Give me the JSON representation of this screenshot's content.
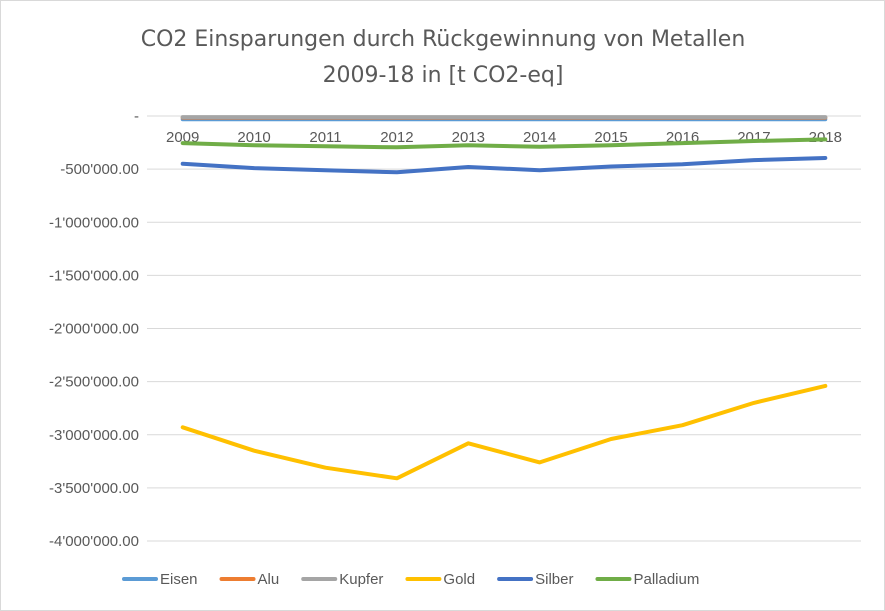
{
  "chart_data": {
    "type": "line",
    "title_lines": [
      "CO2 Einsparungen durch Rückgewinnung von Metallen",
      "2009-18 in [t CO2-eq]"
    ],
    "categories": [
      "2009",
      "2010",
      "2011",
      "2012",
      "2013",
      "2014",
      "2015",
      "2016",
      "2017",
      "2018"
    ],
    "y_ticks": [
      0,
      -500000,
      -1000000,
      -1500000,
      -2000000,
      -2500000,
      -3000000,
      -3500000,
      -4000000
    ],
    "y_tick_labels": [
      "-",
      "-500'000.00",
      "-1'000'000.00",
      "-1'500'000.00",
      "-2'000'000.00",
      "-2'500'000.00",
      "-3'000'000.00",
      "-3'500'000.00",
      "-4'000'000.00"
    ],
    "ylim": [
      -4000000,
      0
    ],
    "grid": true,
    "legend_position": "bottom",
    "series": [
      {
        "name": "Eisen",
        "color": "#5b9bd5",
        "values": [
          -30000,
          -30000,
          -30000,
          -30000,
          -30000,
          -30000,
          -30000,
          -30000,
          -30000,
          -30000
        ]
      },
      {
        "name": "Alu",
        "color": "#ed7d31",
        "values": [
          -15000,
          -15000,
          -15000,
          -15000,
          -15000,
          -15000,
          -15000,
          -15000,
          -15000,
          -15000
        ]
      },
      {
        "name": "Kupfer",
        "color": "#a5a5a5",
        "values": [
          -10000,
          -10000,
          -10000,
          -10000,
          -10000,
          -10000,
          -10000,
          -10000,
          -10000,
          -10000
        ]
      },
      {
        "name": "Gold",
        "color": "#ffc000",
        "values": [
          -2930000,
          -3150000,
          -3310000,
          -3410000,
          -3080000,
          -3260000,
          -3040000,
          -2910000,
          -2700000,
          -2540000
        ]
      },
      {
        "name": "Silber",
        "color": "#4472c4",
        "values": [
          -450000,
          -490000,
          -510000,
          -530000,
          -480000,
          -510000,
          -475000,
          -455000,
          -415000,
          -395000
        ]
      },
      {
        "name": "Palladium",
        "color": "#70ad47",
        "values": [
          -255000,
          -275000,
          -285000,
          -295000,
          -275000,
          -290000,
          -275000,
          -255000,
          -235000,
          -220000
        ]
      }
    ]
  }
}
